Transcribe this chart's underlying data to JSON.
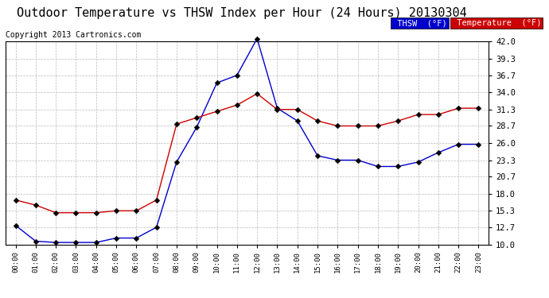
{
  "title": "Outdoor Temperature vs THSW Index per Hour (24 Hours) 20130304",
  "copyright": "Copyright 2013 Cartronics.com",
  "hours": [
    0,
    1,
    2,
    3,
    4,
    5,
    6,
    7,
    8,
    9,
    10,
    11,
    12,
    13,
    14,
    15,
    16,
    17,
    18,
    19,
    20,
    21,
    22,
    23
  ],
  "temperature": [
    17.0,
    16.2,
    15.0,
    15.0,
    15.0,
    15.3,
    15.3,
    17.0,
    29.0,
    30.0,
    31.0,
    32.0,
    33.8,
    31.3,
    31.3,
    29.5,
    28.7,
    28.7,
    28.7,
    29.5,
    30.5,
    30.5,
    31.5,
    31.5
  ],
  "thsw": [
    13.0,
    10.5,
    10.3,
    10.3,
    10.3,
    11.0,
    11.0,
    12.7,
    23.0,
    28.5,
    35.5,
    36.7,
    42.5,
    31.5,
    29.5,
    24.0,
    23.3,
    23.3,
    22.3,
    22.3,
    23.0,
    24.5,
    25.8,
    25.8
  ],
  "temp_color": "#cc0000",
  "thsw_color": "#0000cc",
  "bg_color": "#ffffff",
  "plot_bg_color": "#ffffff",
  "grid_color": "#bbbbbb",
  "ylim": [
    10.0,
    42.0
  ],
  "yticks": [
    10.0,
    12.7,
    15.3,
    18.0,
    20.7,
    23.3,
    26.0,
    28.7,
    31.3,
    34.0,
    36.7,
    39.3,
    42.0
  ],
  "legend_thsw_bg": "#0000cc",
  "legend_temp_bg": "#cc0000",
  "legend_text_color": "#ffffff",
  "title_fontsize": 11,
  "copyright_fontsize": 7,
  "markersize": 3.5
}
